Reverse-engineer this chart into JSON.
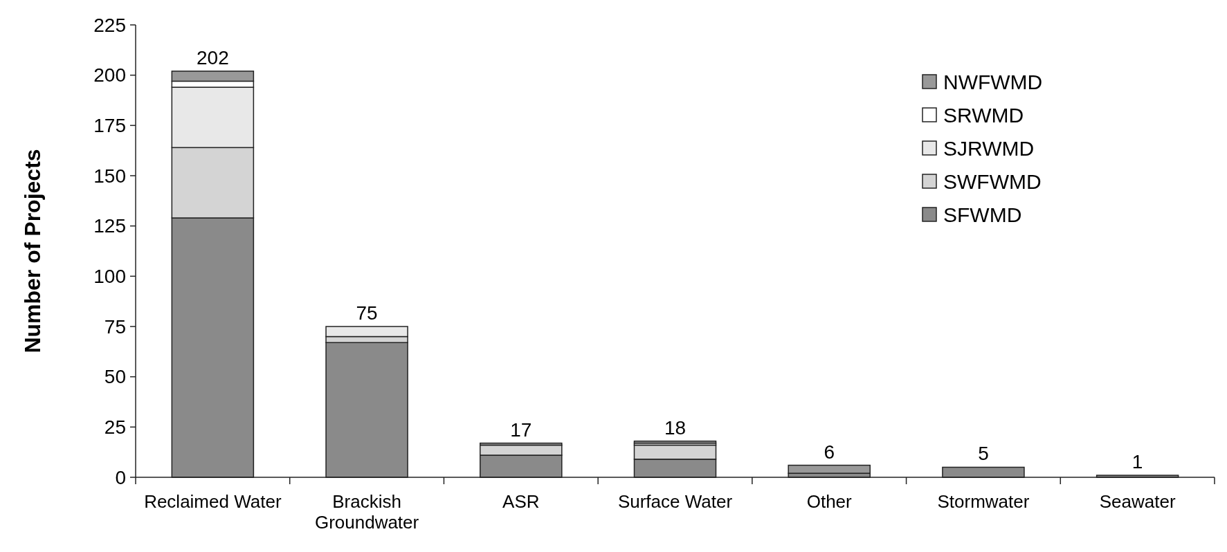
{
  "chart_data": {
    "type": "bar",
    "stacked": true,
    "ylabel": "Number of Projects",
    "categories": [
      "Reclaimed Water",
      "Brackish Groundwater",
      "ASR",
      "Surface Water",
      "Other",
      "Stormwater",
      "Seawater"
    ],
    "series": [
      {
        "name": "SFWMD",
        "color": "#8a8a8a",
        "values": [
          129,
          67,
          11,
          9,
          2,
          5,
          1
        ]
      },
      {
        "name": "SWFWMD",
        "color": "#d4d4d4",
        "values": [
          35,
          3,
          5,
          7,
          0,
          0,
          0
        ]
      },
      {
        "name": "SJRWMD",
        "color": "#e8e8e8",
        "values": [
          30,
          5,
          0,
          1,
          0,
          0,
          0
        ]
      },
      {
        "name": "SRWMD",
        "color": "#ffffff",
        "values": [
          3,
          0,
          0,
          0,
          0,
          0,
          0
        ]
      },
      {
        "name": "NWFWMD",
        "color": "#999999",
        "values": [
          5,
          0,
          1,
          1,
          4,
          0,
          0
        ]
      }
    ],
    "totals": [
      "202",
      "75",
      "17",
      "18",
      "6",
      "5",
      "1"
    ],
    "ylim": [
      0,
      225
    ],
    "yticks": [
      0,
      25,
      50,
      75,
      100,
      125,
      150,
      175,
      200,
      225
    ],
    "grid": false,
    "legend": "top right"
  }
}
